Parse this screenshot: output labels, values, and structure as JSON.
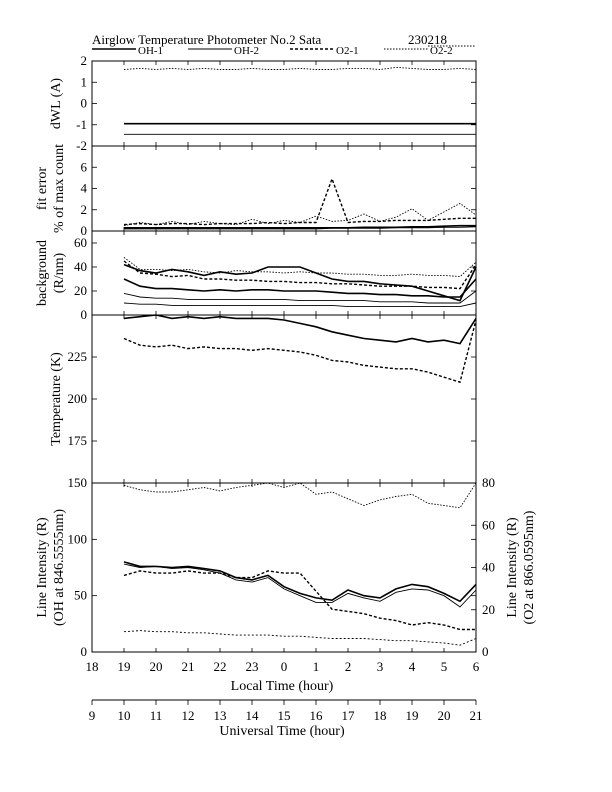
{
  "title": {
    "text": "Airglow Temperature Photometer No.2  Sata",
    "date": "230218"
  },
  "legend": [
    {
      "label": "OH-1",
      "dash": "",
      "width": 1.6
    },
    {
      "label": "OH-2",
      "dash": "",
      "width": 0.9
    },
    {
      "label": "O2-1",
      "dash": "3,2",
      "width": 1.4
    },
    {
      "label": "O2-2",
      "dash": "1.5,1.5",
      "width": 0.9
    }
  ],
  "x_axes": {
    "local": {
      "label": "Local Time (hour)",
      "ticks": [
        "18",
        "19",
        "20",
        "21",
        "22",
        "23",
        "0",
        "1",
        "2",
        "3",
        "4",
        "5",
        "6"
      ]
    },
    "universal": {
      "label": "Universal Time (hour)",
      "ticks": [
        "9",
        "10",
        "11",
        "12",
        "13",
        "14",
        "15",
        "16",
        "17",
        "18",
        "19",
        "20",
        "21"
      ]
    }
  },
  "chart_data": [
    {
      "type": "line",
      "panel": "dWL",
      "ylabel": "dWL (A)",
      "ylim": [
        -2,
        2
      ],
      "yticks": [
        "-2",
        "-1",
        "0",
        "1",
        "2"
      ],
      "x": [
        19,
        19.5,
        20,
        20.5,
        21,
        21.5,
        22,
        22.5,
        23,
        23.5,
        24,
        24.5,
        25,
        25.5,
        26,
        26.5,
        27,
        27.5,
        28,
        28.5,
        29,
        29.5,
        30
      ],
      "series": [
        {
          "name": "OH-1",
          "values": [
            -0.95,
            -0.95,
            -0.95,
            -0.95,
            -0.95,
            -0.95,
            -0.95,
            -0.95,
            -0.95,
            -0.95,
            -0.95,
            -0.95,
            -0.95,
            -0.95,
            -0.95,
            -0.95,
            -0.95,
            -0.95,
            -0.95,
            -0.95,
            -0.95,
            -0.95,
            -0.95
          ]
        },
        {
          "name": "OH-2",
          "values": [
            -1.45,
            -1.45,
            -1.45,
            -1.45,
            -1.45,
            -1.45,
            -1.45,
            -1.45,
            -1.45,
            -1.45,
            -1.45,
            -1.45,
            -1.45,
            -1.45,
            -1.45,
            -1.45,
            -1.45,
            -1.45,
            -1.45,
            -1.45,
            -1.45,
            -1.45,
            -1.45
          ]
        },
        {
          "name": "O2-2",
          "values": [
            1.6,
            1.65,
            1.6,
            1.65,
            1.6,
            1.65,
            1.6,
            1.6,
            1.65,
            1.6,
            1.6,
            1.65,
            1.6,
            1.6,
            1.65,
            1.65,
            1.6,
            1.7,
            1.65,
            1.6,
            1.6,
            1.65,
            1.6
          ]
        }
      ]
    },
    {
      "type": "line",
      "panel": "fit-error",
      "ylabel": "fit error",
      "ylabel2": "% of max count",
      "ylim": [
        0,
        8
      ],
      "yticks": [
        "0",
        "2",
        "4",
        "6"
      ],
      "x": [
        19,
        19.5,
        20,
        20.5,
        21,
        21.5,
        22,
        22.5,
        23,
        23.5,
        24,
        24.5,
        25,
        25.5,
        26,
        26.5,
        27,
        27.5,
        28,
        28.5,
        29,
        29.5,
        30
      ],
      "series": [
        {
          "name": "OH-1",
          "values": [
            0.3,
            0.3,
            0.3,
            0.3,
            0.3,
            0.3,
            0.3,
            0.3,
            0.3,
            0.3,
            0.3,
            0.3,
            0.3,
            0.3,
            0.3,
            0.35,
            0.35,
            0.35,
            0.4,
            0.4,
            0.45,
            0.5,
            0.5
          ]
        },
        {
          "name": "OH-2",
          "values": [
            0.2,
            0.2,
            0.2,
            0.2,
            0.2,
            0.2,
            0.2,
            0.2,
            0.2,
            0.2,
            0.2,
            0.2,
            0.2,
            0.25,
            0.25,
            0.25,
            0.25,
            0.3,
            0.3,
            0.3,
            0.35,
            0.35,
            0.4
          ]
        },
        {
          "name": "O2-1",
          "values": [
            0.6,
            0.7,
            0.6,
            0.7,
            0.7,
            0.6,
            0.7,
            0.7,
            0.7,
            0.8,
            0.7,
            0.8,
            0.8,
            4.9,
            0.8,
            0.9,
            0.9,
            1.0,
            1.0,
            1.0,
            1.1,
            1.2,
            1.2
          ]
        },
        {
          "name": "O2-2",
          "values": [
            0.5,
            0.8,
            0.6,
            0.9,
            0.6,
            0.9,
            0.7,
            0.6,
            1.1,
            0.7,
            1.0,
            0.8,
            1.4,
            0.9,
            1.0,
            1.6,
            0.9,
            1.3,
            2.1,
            1.0,
            1.8,
            2.6,
            1.5
          ]
        }
      ]
    },
    {
      "type": "line",
      "panel": "background",
      "ylabel": "background",
      "ylabel2": "(R/nm)",
      "ylim": [
        0,
        70
      ],
      "yticks": [
        "0",
        "20",
        "40",
        "60"
      ],
      "x": [
        19,
        19.5,
        20,
        20.5,
        21,
        21.5,
        22,
        22.5,
        23,
        23.5,
        24,
        24.5,
        25,
        25.5,
        26,
        26.5,
        27,
        27.5,
        28,
        28.5,
        29,
        29.5,
        30
      ],
      "series": [
        {
          "name": "OH-1",
          "values": [
            42,
            37,
            35,
            38,
            36,
            33,
            36,
            34,
            35,
            40,
            40,
            40,
            35,
            30,
            28,
            28,
            26,
            25,
            24,
            20,
            16,
            12,
            40
          ]
        },
        {
          "name": "OH-1",
          "values": [
            30,
            24,
            22,
            22,
            21,
            20,
            21,
            20,
            21,
            21,
            20,
            20,
            20,
            19,
            18,
            18,
            17,
            17,
            16,
            16,
            15,
            15,
            30
          ]
        },
        {
          "name": "OH-2",
          "values": [
            18,
            15,
            14,
            14,
            13,
            13,
            13,
            13,
            13,
            13,
            13,
            12,
            12,
            12,
            12,
            12,
            11,
            11,
            11,
            10,
            10,
            10,
            20
          ]
        },
        {
          "name": "OH-2",
          "values": [
            10,
            9,
            9,
            8,
            8,
            8,
            8,
            8,
            8,
            8,
            8,
            8,
            8,
            8,
            7,
            7,
            7,
            7,
            7,
            7,
            7,
            7,
            10
          ]
        },
        {
          "name": "O2-1",
          "values": [
            45,
            35,
            34,
            32,
            33,
            30,
            30,
            29,
            29,
            28,
            28,
            27,
            27,
            26,
            26,
            25,
            24,
            24,
            24,
            23,
            23,
            22,
            42
          ]
        },
        {
          "name": "O2-2",
          "values": [
            48,
            38,
            38,
            37,
            38,
            36,
            35,
            37,
            36,
            36,
            35,
            36,
            35,
            35,
            34,
            34,
            33,
            33,
            34,
            33,
            33,
            32,
            44
          ]
        }
      ]
    },
    {
      "type": "line",
      "panel": "temperature",
      "ylabel": "Temperature (K)",
      "ylim": [
        150,
        250
      ],
      "yticks": [
        "175",
        "200",
        "225"
      ],
      "x": [
        19,
        19.5,
        20,
        20.5,
        21,
        21.5,
        22,
        22.5,
        23,
        23.5,
        24,
        24.5,
        25,
        25.5,
        26,
        26.5,
        27,
        27.5,
        28,
        28.5,
        29,
        29.5,
        30
      ],
      "series": [
        {
          "name": "OH-1",
          "values": [
            248,
            249,
            250,
            248,
            249,
            248,
            249,
            248,
            248,
            248,
            247,
            245,
            243,
            240,
            238,
            236,
            235,
            234,
            236,
            234,
            235,
            233,
            248
          ]
        },
        {
          "name": "O2-1",
          "values": [
            236,
            232,
            231,
            232,
            230,
            231,
            230,
            230,
            229,
            230,
            229,
            228,
            226,
            223,
            222,
            220,
            219,
            218,
            218,
            216,
            213,
            210,
            247
          ]
        }
      ]
    },
    {
      "type": "line",
      "panel": "line-intensity",
      "ylabel": "Line Intensity (R)",
      "ylabel2": "(OH at 846.5555nm)",
      "y2label": "Line Intensity (R)",
      "y2label2": "(O2 at 866.0595nm)",
      "ylim": [
        0,
        150
      ],
      "yticks": [
        "0",
        "50",
        "100",
        "150"
      ],
      "y2lim": [
        0,
        80
      ],
      "y2ticks": [
        "0",
        "20",
        "40",
        "60",
        "80"
      ],
      "x": [
        19,
        19.5,
        20,
        20.5,
        21,
        21.5,
        22,
        22.5,
        23,
        23.5,
        24,
        24.5,
        25,
        25.5,
        26,
        26.5,
        27,
        27.5,
        28,
        28.5,
        29,
        29.5,
        30
      ],
      "series": [
        {
          "name": "OH-1",
          "values": [
            80,
            76,
            76,
            75,
            76,
            74,
            72,
            66,
            64,
            68,
            58,
            52,
            48,
            46,
            55,
            50,
            48,
            56,
            60,
            58,
            52,
            45,
            60
          ]
        },
        {
          "name": "OH-2",
          "values": [
            78,
            75,
            76,
            74,
            75,
            73,
            70,
            64,
            62,
            66,
            56,
            50,
            44,
            44,
            52,
            48,
            45,
            53,
            56,
            55,
            50,
            40,
            55
          ]
        },
        {
          "name": "O2-1",
          "values": [
            68,
            72,
            70,
            70,
            72,
            70,
            70,
            66,
            66,
            72,
            70,
            70,
            54,
            38,
            36,
            34,
            30,
            28,
            24,
            26,
            24,
            20,
            20
          ]
        },
        {
          "name": "O2-2",
          "values": [
            148,
            144,
            142,
            142,
            144,
            146,
            143,
            146,
            148,
            150,
            146,
            152,
            140,
            142,
            136,
            130,
            135,
            138,
            140,
            132,
            130,
            128,
            150
          ]
        },
        {
          "name": "OH-lower",
          "values": [
            18,
            19,
            18,
            18,
            17,
            17,
            16,
            15,
            15,
            15,
            14,
            14,
            13,
            12,
            12,
            12,
            11,
            10,
            10,
            9,
            8,
            6,
            12
          ]
        }
      ]
    }
  ]
}
